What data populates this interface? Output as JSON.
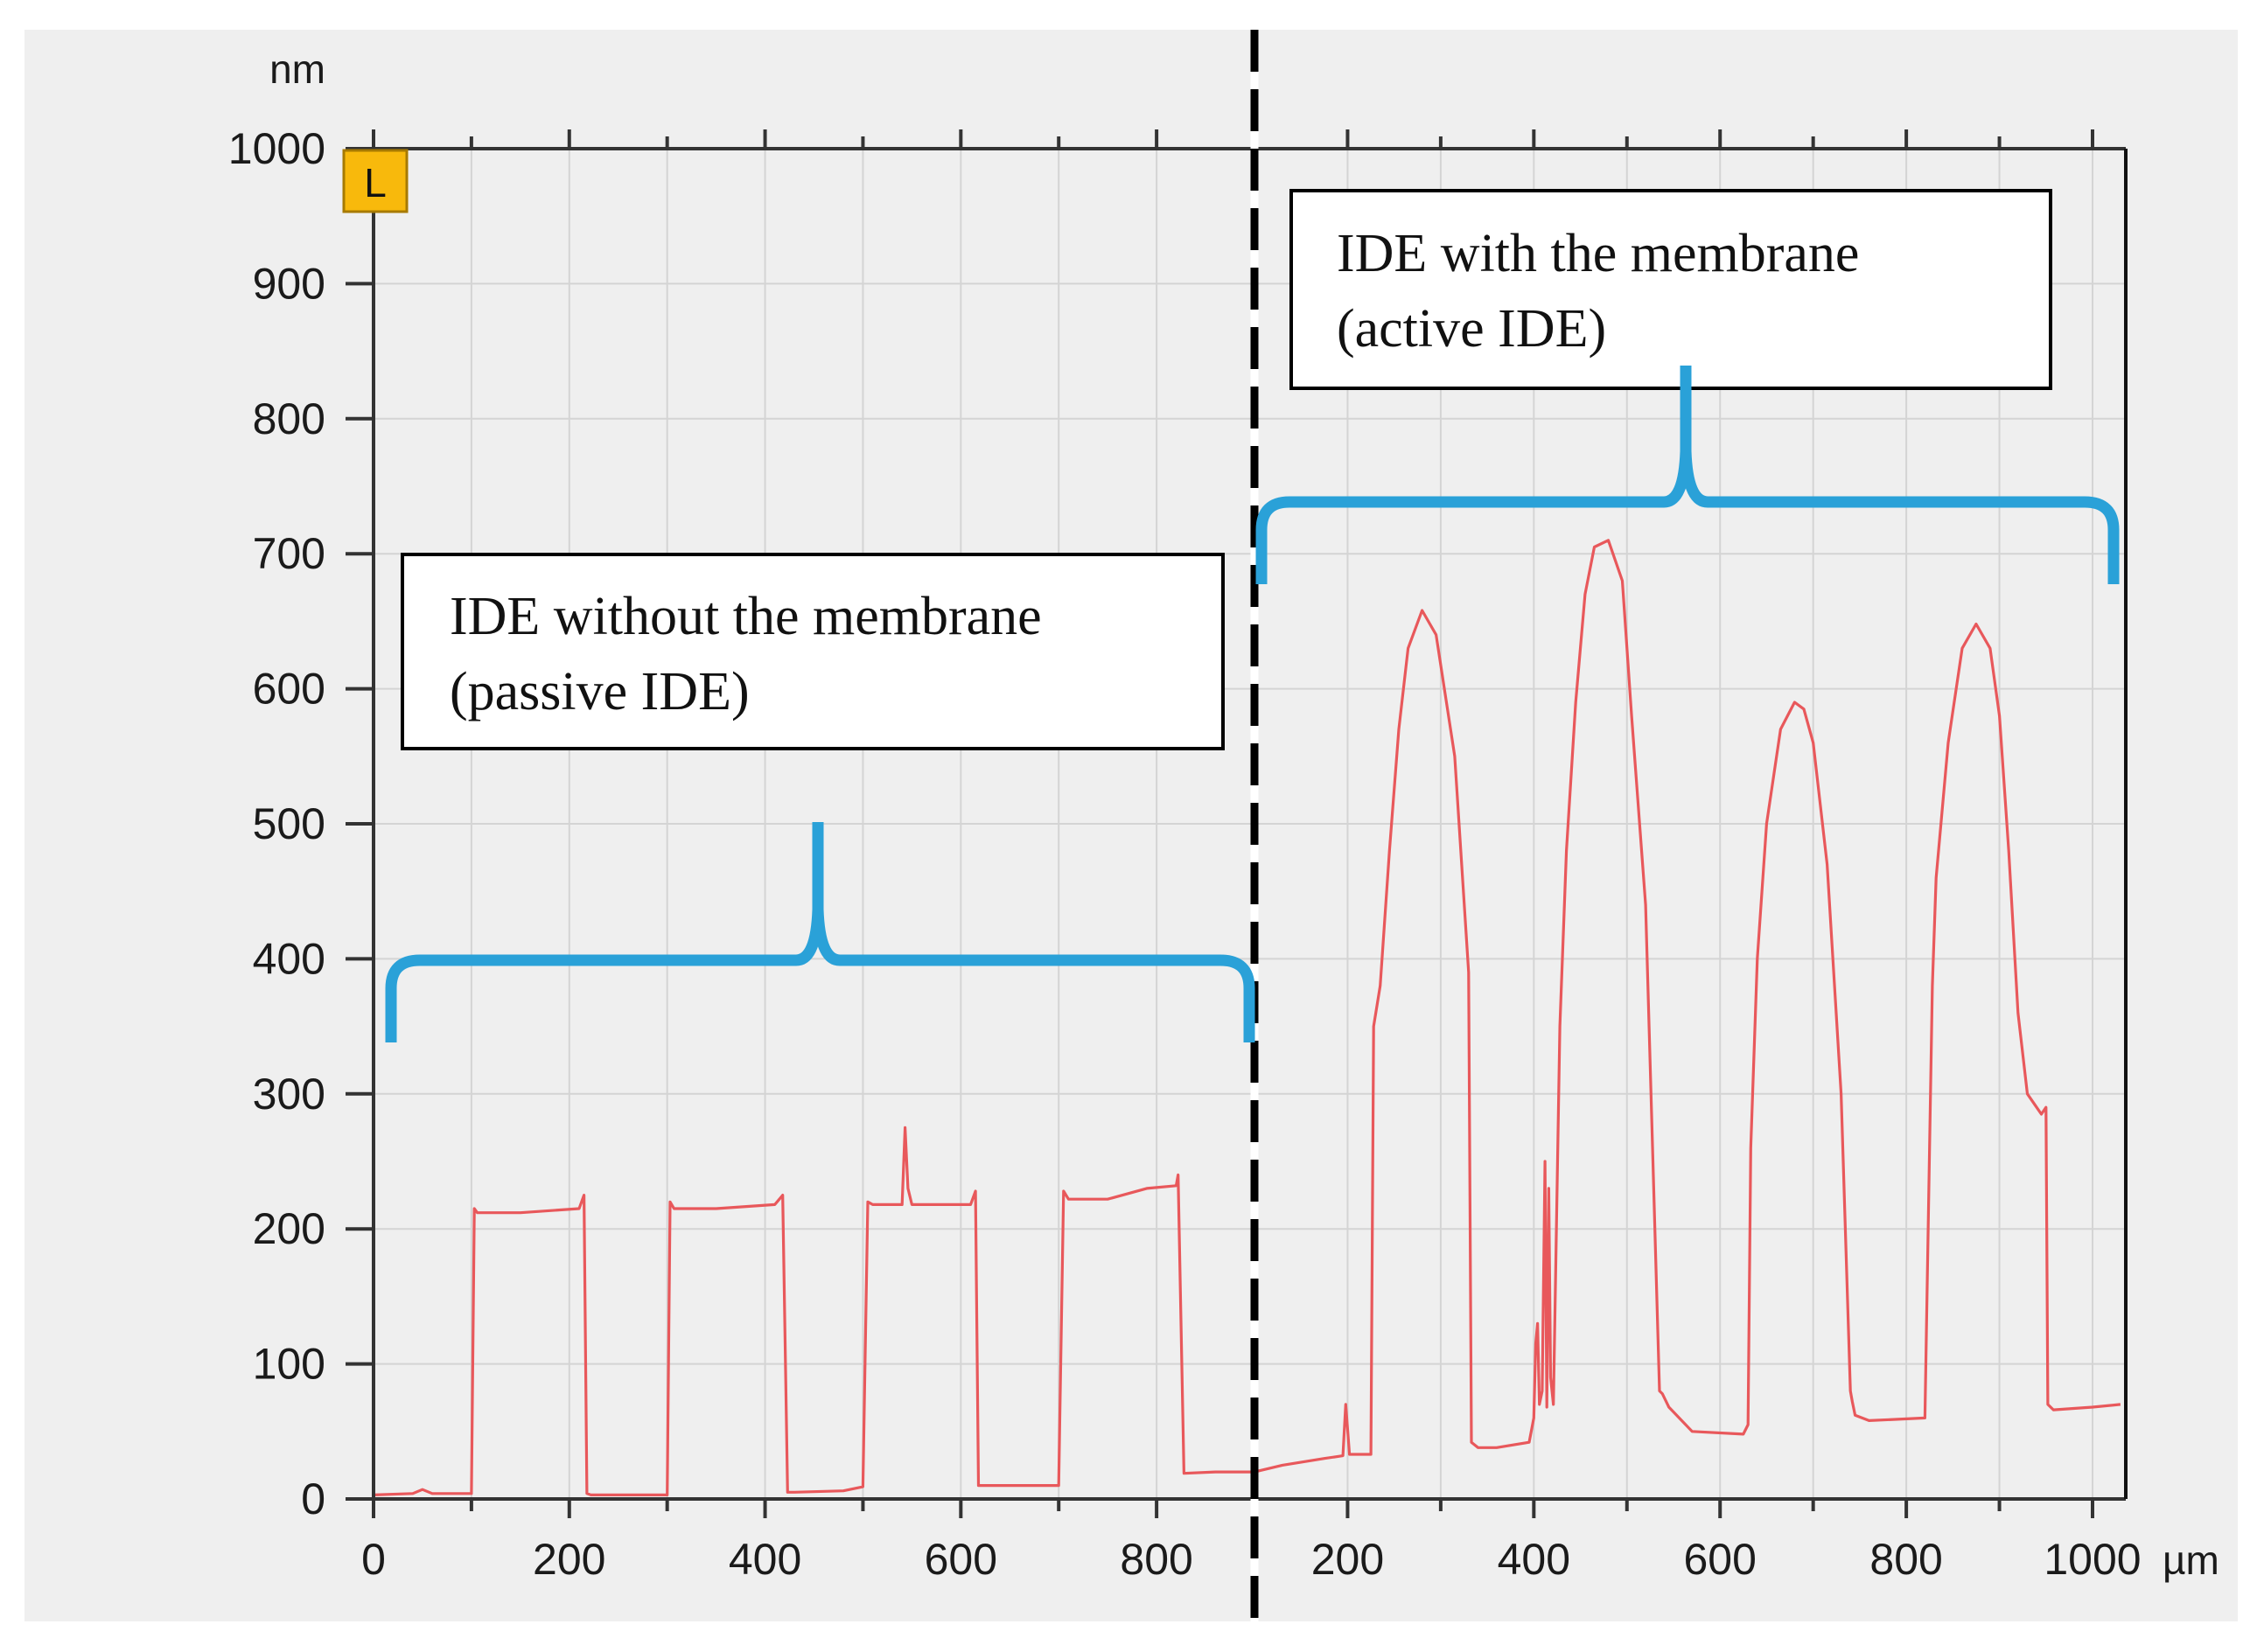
{
  "chart_data": {
    "type": "line",
    "title": "",
    "ylabel": "nm",
    "xlabel": "µm",
    "ylim": [
      0,
      1000
    ],
    "y_ticks": [
      0,
      100,
      200,
      300,
      400,
      500,
      600,
      700,
      800,
      900,
      1000
    ],
    "y_tick_labels": [
      "0",
      "100",
      "200",
      "300",
      "400",
      "500",
      "600",
      "700",
      "800",
      "900",
      "1000"
    ],
    "marker_label": "L",
    "line_color": "#e8585b",
    "bracket_color": "#2aa1d8",
    "panels": [
      {
        "name": "passive",
        "xlim": [
          0,
          900
        ],
        "x_ticks": [
          0,
          200,
          400,
          600,
          800
        ],
        "x_tick_labels": [
          "0",
          "200",
          "400",
          "600",
          "800"
        ],
        "annotation": [
          "IDE without the membrane",
          "(passive IDE)"
        ],
        "series": [
          {
            "name": "IDE without the membrane",
            "x": [
              0,
              40,
              50,
              60,
              100,
              103,
              106,
              150,
              210,
              215,
              218,
              222,
              300,
              303,
              307,
              350,
              410,
              418,
              423,
              430,
              480,
              500,
              505,
              510,
              540,
              543,
              546,
              550,
              553,
              560,
              610,
              615,
              618,
              625,
              700,
              705,
              710,
              750,
              790,
              820,
              822,
              828,
              860,
              900
            ],
            "y": [
              3,
              4,
              7,
              4,
              4,
              215,
              212,
              212,
              215,
              225,
              4,
              3,
              3,
              220,
              215,
              215,
              218,
              225,
              5,
              5,
              6,
              9,
              220,
              218,
              218,
              275,
              230,
              218,
              218,
              218,
              218,
              228,
              10,
              10,
              10,
              228,
              222,
              222,
              230,
              232,
              240,
              19,
              20,
              20
            ]
          }
        ]
      },
      {
        "name": "active",
        "xlim": [
          100,
          1030
        ],
        "x_ticks": [
          200,
          400,
          600,
          800,
          1000
        ],
        "x_tick_labels": [
          "200",
          "400",
          "600",
          "800",
          "1000"
        ],
        "annotation": [
          "IDE with the membrane",
          "(active IDE)"
        ],
        "series": [
          {
            "name": "IDE with the membrane",
            "x": [
              100,
              130,
              175,
              195,
              198,
              202,
              225,
              228,
              235,
              245,
              255,
              265,
              280,
              295,
              315,
              330,
              333,
              340,
              360,
              395,
              400,
              402,
              404,
              406,
              409,
              412,
              414,
              416,
              418,
              421,
              428,
              435,
              445,
              455,
              465,
              480,
              495,
              505,
              520,
              535,
              538,
              545,
              570,
              625,
              630,
              633,
              640,
              650,
              665,
              680,
              690,
              700,
              715,
              730,
              740,
              742,
              745,
              760,
              820,
              825,
              828,
              832,
              845,
              860,
              875,
              890,
              900,
              910,
              920,
              930,
              940,
              945,
              950,
              952,
              955,
              958,
              1000,
              1030
            ],
            "y": [
              20,
              25,
              30,
              32,
              70,
              33,
              33,
              350,
              380,
              480,
              570,
              630,
              658,
              640,
              550,
              390,
              42,
              38,
              38,
              42,
              60,
              115,
              130,
              70,
              80,
              250,
              68,
              230,
              90,
              70,
              350,
              480,
              590,
              670,
              705,
              710,
              680,
              580,
              440,
              80,
              78,
              68,
              50,
              48,
              55,
              260,
              400,
              500,
              570,
              590,
              585,
              560,
              470,
              300,
              80,
              72,
              62,
              58,
              60,
              260,
              380,
              460,
              560,
              630,
              648,
              630,
              580,
              480,
              360,
              300,
              290,
              285,
              290,
              70,
              68,
              66,
              68,
              70
            ]
          }
        ]
      }
    ]
  }
}
